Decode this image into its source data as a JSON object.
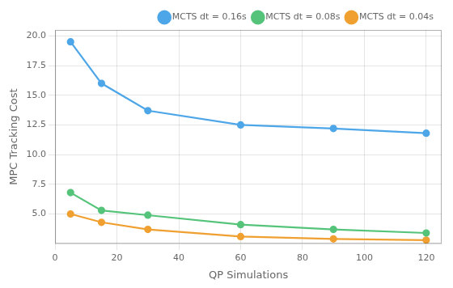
{
  "chart_data": {
    "type": "line",
    "xlabel": "QP Simulations",
    "ylabel": "MPC Tracking Cost",
    "x": [
      5,
      15,
      30,
      60,
      90,
      120
    ],
    "series": [
      {
        "name": "MCTS dt = 0.16s",
        "color": "#4da6e8",
        "marker": "circle",
        "values": [
          19.5,
          16.0,
          13.7,
          12.5,
          12.2,
          11.8
        ]
      },
      {
        "name": "MCTS dt = 0.08s",
        "color": "#55c47a",
        "marker": "circle",
        "values": [
          6.8,
          5.3,
          4.9,
          4.1,
          3.7,
          3.4
        ]
      },
      {
        "name": "MCTS dt = 0.04s",
        "color": "#f0a030",
        "marker": "circle",
        "values": [
          5.0,
          4.3,
          3.7,
          3.1,
          2.9,
          2.8
        ]
      }
    ],
    "xlim": [
      0,
      125
    ],
    "xticks": [
      0,
      20,
      40,
      60,
      80,
      100,
      120
    ],
    "ylim": [
      2.5,
      20.5
    ],
    "yticks": [
      {
        "value": 5,
        "label": "5.0"
      },
      7.5,
      {
        "value": 10,
        "label": "10.0"
      },
      12.5,
      {
        "value": 15,
        "label": "15.0"
      },
      17.5,
      {
        "value": 20,
        "label": "20.0"
      }
    ],
    "grid": true,
    "legend": "upper right"
  }
}
